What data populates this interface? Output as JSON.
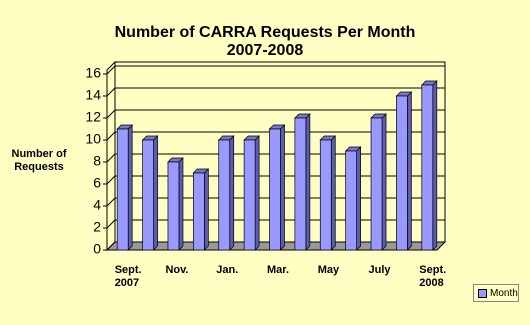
{
  "chart_data": {
    "type": "bar",
    "title": "Number of CARRA Requests Per Month\n2007-2008",
    "y_label": "Number of\nRequests",
    "categories": [
      "Sept.\n2007",
      null,
      "Nov.",
      null,
      "Jan.",
      null,
      "Mar.",
      null,
      "May",
      null,
      "July",
      null,
      "Sept.\n2008"
    ],
    "series": [
      {
        "name": "Month",
        "color": "#9999ff",
        "values": [
          11,
          10,
          8,
          7,
          10,
          10,
          11,
          12,
          10,
          9,
          12,
          14,
          15
        ]
      }
    ],
    "ylim": [
      0,
      16
    ],
    "yticks": [
      0,
      2,
      4,
      6,
      8,
      10,
      12,
      14,
      16
    ],
    "grid": true,
    "legend": "bottom-right"
  }
}
